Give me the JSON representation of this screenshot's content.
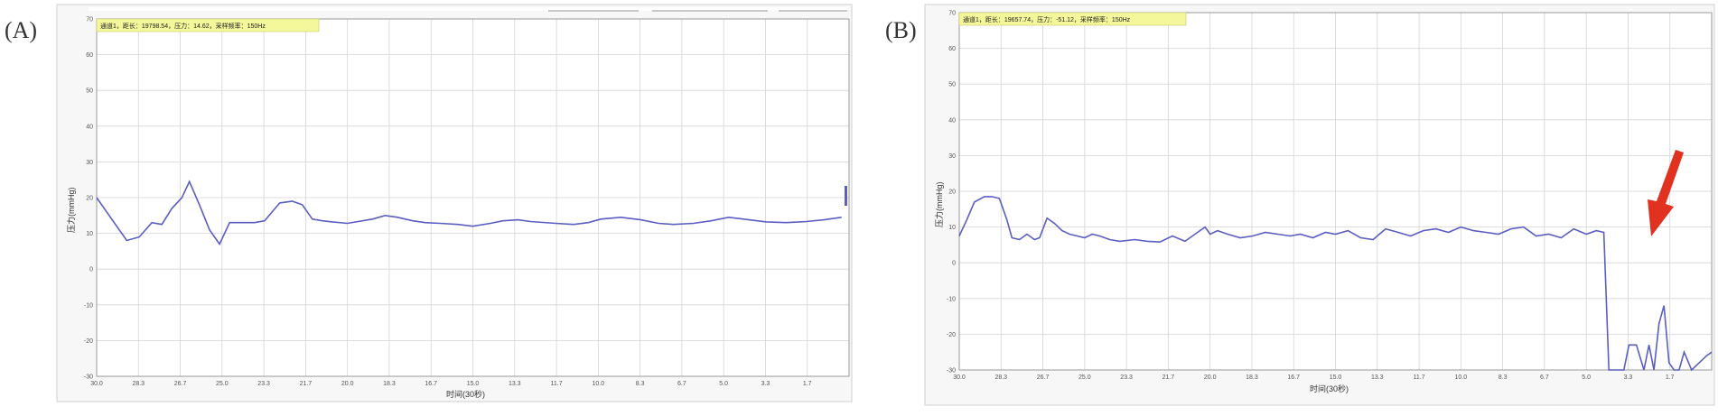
{
  "colors": {
    "line": "#5a5ec0",
    "grid": "#d4d4d4",
    "status_bg": "#f4f79a",
    "arrow": "#e03121",
    "frame": "#b0b0b0"
  },
  "chart_data": [
    {
      "type": "line",
      "panel_label": "(A)",
      "status_text": "通道1，距长：19798.54，压力：14.62，采样频率：150Hz",
      "xlabel": "时间(30秒)",
      "ylabel": "压力(mmHg)",
      "x_tick_labels": [
        "30.0",
        "28.3",
        "26.7",
        "25.0",
        "23.3",
        "21.7",
        "20.0",
        "18.3",
        "16.7",
        "15.0",
        "13.3",
        "11.7",
        "10.0",
        "8.3",
        "6.7",
        "5.0",
        "3.3",
        "1.7"
      ],
      "y_ticks": [
        -30,
        -20,
        -10,
        0,
        10,
        20,
        30,
        40,
        50,
        60,
        70
      ],
      "ylim": [
        -30,
        70
      ],
      "xlim": [
        30,
        0
      ],
      "grid": true,
      "series": [
        {
          "x": [
            30,
            29.3,
            28.8,
            28.3,
            27.8,
            27.4,
            27,
            26.6,
            26.3,
            25.9,
            25.5,
            25.1,
            24.7,
            24.2,
            23.7,
            23.3,
            22.7,
            22.2,
            21.8,
            21.4,
            21,
            20.6,
            20,
            19,
            18.5,
            18,
            17.4,
            16.9,
            16.3,
            15.6,
            15,
            14.3,
            13.8,
            13.2,
            12.7,
            11.7,
            11,
            10.4,
            9.9,
            9.1,
            8.3,
            7.6,
            7,
            6.2,
            5.5,
            4.8,
            4.2,
            3.3,
            2.5,
            1.7,
            1,
            0.3
          ],
          "y": [
            20,
            13,
            8,
            9,
            13,
            12.5,
            17,
            20,
            24.5,
            18,
            11,
            7,
            13,
            13,
            13,
            13.5,
            18.5,
            19,
            18,
            14,
            13.5,
            13.2,
            12.8,
            14,
            15,
            14.5,
            13.5,
            13,
            12.8,
            12.5,
            12,
            12.8,
            13.5,
            13.8,
            13.3,
            12.8,
            12.5,
            13,
            14,
            14.5,
            13.8,
            12.8,
            12.5,
            12.8,
            13.5,
            14.5,
            14,
            13.2,
            13,
            13.3,
            13.8,
            14.5
          ]
        }
      ]
    },
    {
      "type": "line",
      "panel_label": "(B)",
      "status_text": "通道1，距长：19657.74，压力：-51.12，采样频率：150Hz",
      "xlabel": "时间(30秒)",
      "ylabel": "压力(mmHg)",
      "x_tick_labels": [
        "30.0",
        "28.3",
        "26.7",
        "25.0",
        "23.3",
        "21.7",
        "20.0",
        "18.3",
        "16.7",
        "15.0",
        "13.3",
        "11.7",
        "10.0",
        "8.3",
        "6.7",
        "5.0",
        "3.3",
        "1.7"
      ],
      "y_ticks": [
        -30,
        -20,
        -10,
        0,
        10,
        20,
        30,
        40,
        50,
        60,
        70
      ],
      "ylim": [
        -30,
        70
      ],
      "xlim": [
        30,
        0
      ],
      "grid": true,
      "series": [
        {
          "x": [
            30,
            29.7,
            29.4,
            29,
            28.7,
            28.4,
            28.1,
            27.9,
            27.6,
            27.3,
            27,
            26.8,
            26.5,
            26.2,
            25.9,
            25.6,
            25.3,
            25,
            24.7,
            24.4,
            24,
            23.6,
            23,
            22.5,
            22,
            21.5,
            21,
            20.5,
            20.2,
            20,
            19.7,
            19.3,
            18.8,
            18.3,
            17.8,
            17.3,
            16.8,
            16.4,
            15.9,
            15.4,
            15,
            14.5,
            14,
            13.5,
            13,
            12.5,
            12,
            11.5,
            11,
            10.5,
            10,
            9.5,
            9,
            8.5,
            8,
            7.5,
            7,
            6.5,
            6,
            5.5,
            5,
            4.6,
            4.3,
            4.1,
            3.5,
            3.3,
            3,
            2.7,
            2.5,
            2.3,
            2.1,
            1.9,
            1.7,
            1.5,
            1.3,
            1.1,
            0.8,
            0.5,
            0.2,
            0
          ],
          "y": [
            7.5,
            12,
            17,
            18.5,
            18.5,
            18,
            12,
            7,
            6.5,
            8,
            6.5,
            7,
            12.5,
            11,
            9,
            8,
            7.5,
            7,
            8,
            7.5,
            6.5,
            6,
            6.5,
            6,
            5.8,
            7.5,
            6,
            8.5,
            10,
            8,
            9,
            8,
            7,
            7.5,
            8.5,
            8,
            7.5,
            8,
            7,
            8.5,
            8,
            9,
            7,
            6.5,
            9.5,
            8.5,
            7.5,
            9,
            9.5,
            8.5,
            10,
            9,
            8.5,
            8,
            9.5,
            10,
            7.5,
            8,
            7,
            9.5,
            8,
            9,
            8.5,
            -31,
            -31,
            -23,
            -23,
            -30,
            -23,
            -31,
            -17,
            -12,
            -28,
            -30,
            -30,
            -25,
            -31,
            -28,
            -26,
            -25
          ]
        }
      ]
    }
  ]
}
